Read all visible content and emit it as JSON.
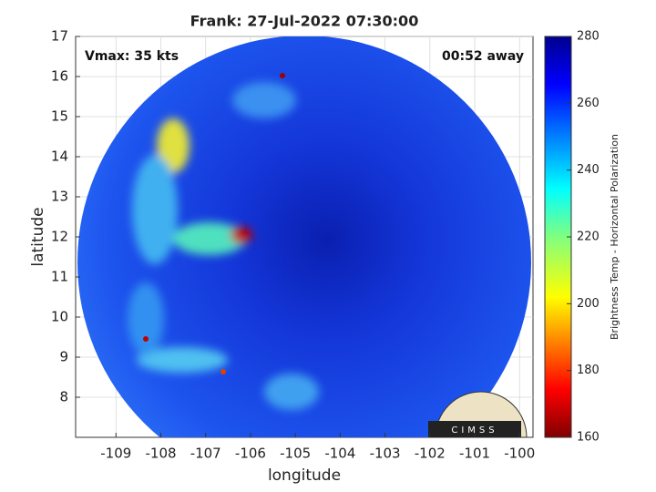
{
  "chart_data": {
    "type": "image",
    "title": "Frank: 27-Jul-2022 07:30:00",
    "annotations": [
      "Vmax: 35 kts",
      "00:52 away"
    ],
    "xlabel": "longitude",
    "ylabel": "latitude",
    "xlim": [
      -109.9,
      -99.7
    ],
    "xticks": [
      -109,
      -108,
      -107,
      -106,
      -105,
      -104,
      -103,
      -102,
      -101,
      -100
    ],
    "ylim": [
      7,
      17
    ],
    "yticks": [
      8,
      9,
      10,
      11,
      12,
      13,
      14,
      15,
      16,
      17
    ],
    "grid": true,
    "colorbar": {
      "label": "Brightness Temp - Horizontal Polarization",
      "lim": [
        160,
        280
      ],
      "ticks": [
        160,
        180,
        200,
        220,
        240,
        260,
        280
      ]
    },
    "logo": "CIMSS"
  }
}
